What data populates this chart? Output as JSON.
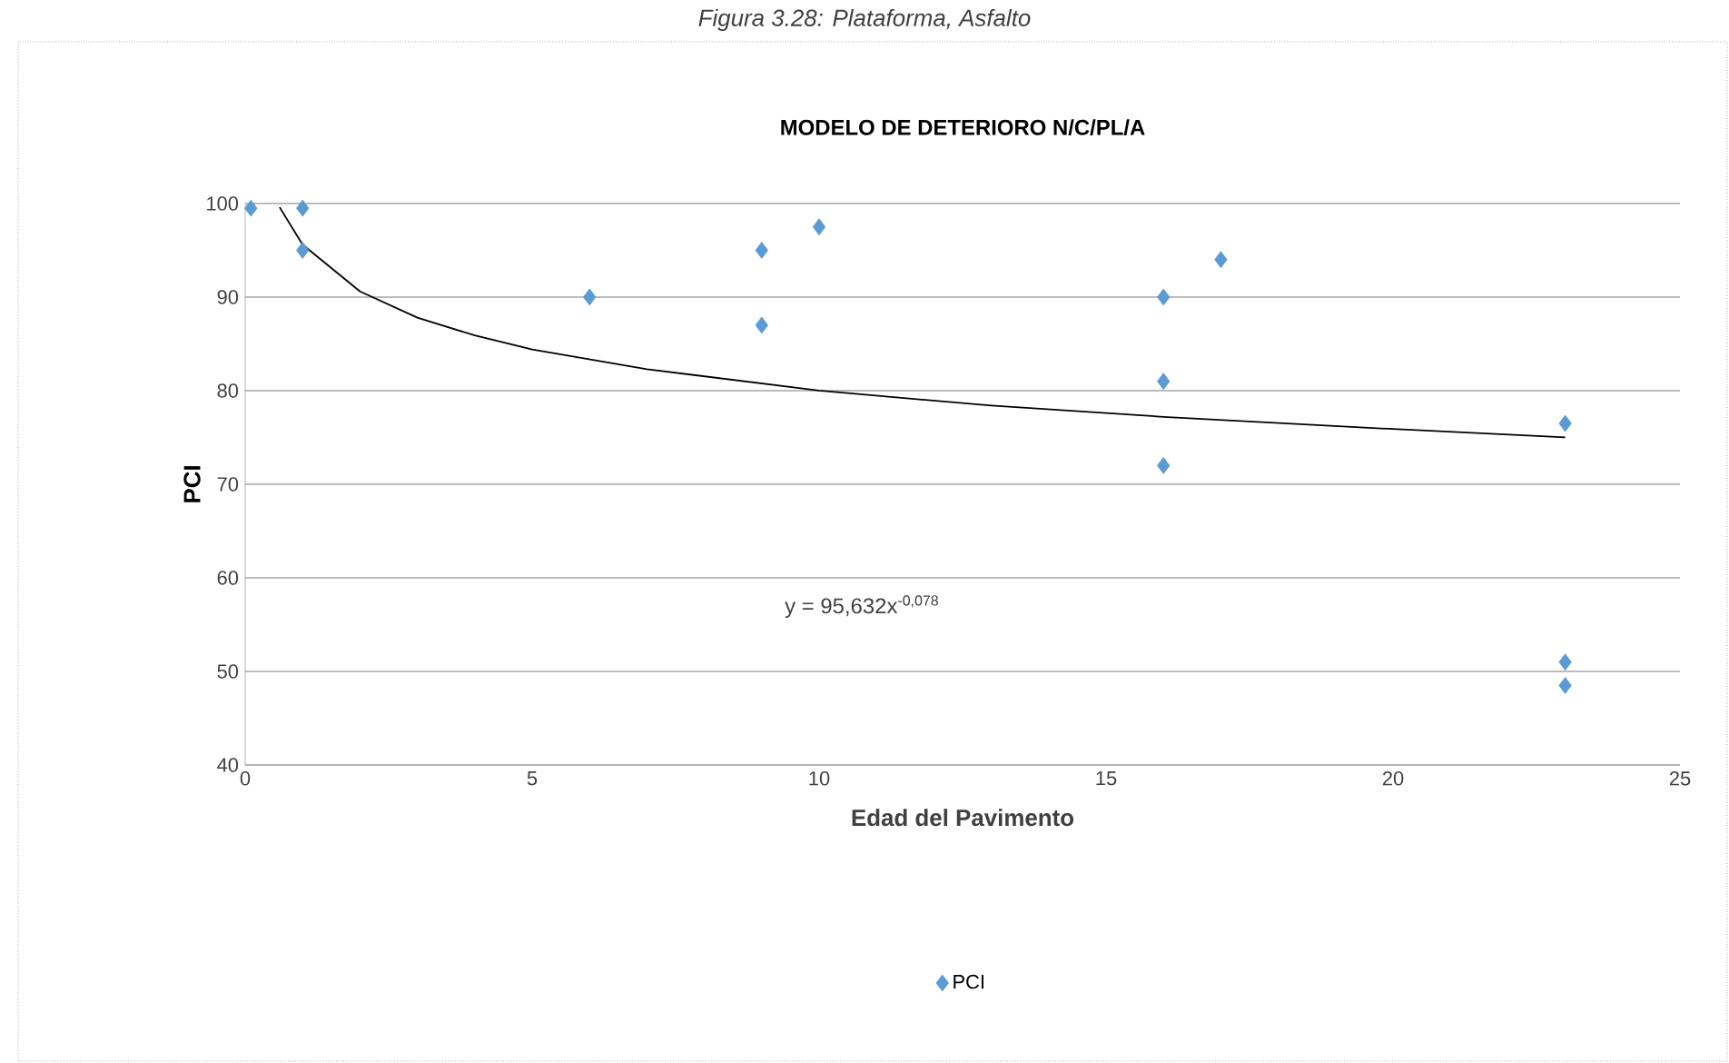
{
  "chart_data": {
    "type": "scatter",
    "title": "MODELO DE DETERIORO N/C/PL/A",
    "xlabel": "Edad del Pavimento",
    "ylabel": "PCI",
    "annotations": [
      "*Figura 3.28: Plataforma, Asfalto*",
      "y = 95,632x$^{-0,078}$"
    ],
    "series": [
      {
        "name": "PCI",
        "color": "#5b9bd5",
        "marker": "diamond",
        "x": [
          0.1,
          1,
          1,
          6,
          9,
          9,
          10,
          16,
          16,
          16,
          17,
          23,
          23,
          23
        ],
        "values": [
          99.5,
          99.5,
          95,
          90,
          95,
          87,
          97.5,
          90,
          81,
          72,
          94,
          76.5,
          51,
          48.5
        ]
      },
      {
        "type": "line",
        "color": "#000000",
        "marker": "none",
        "line_style": "solid",
        "x": [
          0.6,
          1,
          2,
          3,
          4,
          5,
          7,
          10,
          13,
          16,
          20,
          23
        ],
        "values": [
          99.6,
          95.6,
          90.6,
          87.8,
          85.9,
          84.4,
          82.3,
          80.0,
          78.4,
          77.2,
          75.9,
          75.0
        ]
      }
    ],
    "xlim": [
      0,
      25
    ],
    "xticks": [
      0,
      5,
      10,
      15,
      20,
      25
    ],
    "ylim": [
      40,
      100
    ],
    "yticks": [
      40,
      50,
      60,
      70,
      80,
      90,
      100
    ],
    "grid": "y",
    "legend": "bottom"
  }
}
